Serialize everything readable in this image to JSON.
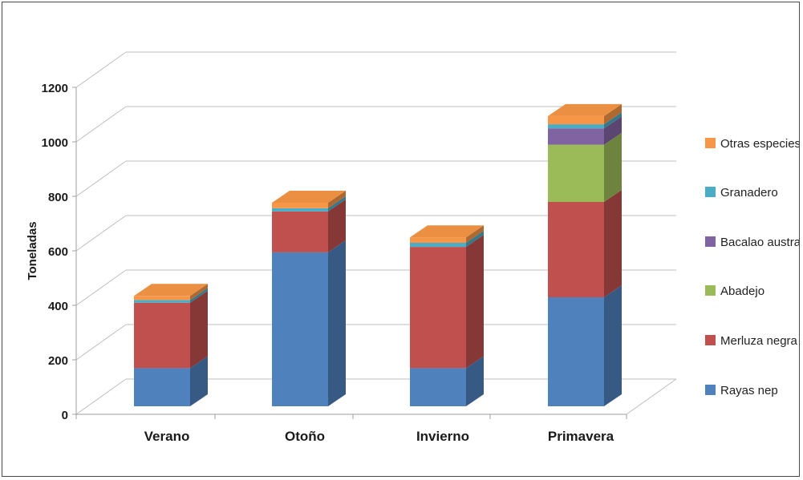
{
  "chart_data": {
    "type": "bar",
    "stacked": true,
    "style": "3d-column",
    "ylabel": "Toneladas",
    "xlabel": "",
    "title": "",
    "ylim": [
      0,
      1200
    ],
    "yticks": [
      "0",
      "200",
      "400",
      "600",
      "800",
      "1000",
      "1200"
    ],
    "grid": true,
    "legend_position": "right",
    "categories": [
      "Verano",
      "Otoño",
      "Invierno",
      "Primavera"
    ],
    "series": [
      {
        "name": "Rayas nep",
        "color": "#4F81BD",
        "values": [
          140,
          565,
          140,
          400
        ]
      },
      {
        "name": "Merluza negra",
        "color": "#C0504D",
        "values": [
          240,
          150,
          445,
          350
        ]
      },
      {
        "name": "Abadejo",
        "color": "#9BBB59",
        "values": [
          0,
          0,
          0,
          210
        ]
      },
      {
        "name": "Bacalao austral",
        "color": "#8064A2",
        "values": [
          0,
          0,
          0,
          60
        ]
      },
      {
        "name": "Granadero",
        "color": "#4BACC6",
        "values": [
          10,
          12,
          15,
          15
        ]
      },
      {
        "name": "Otras especies",
        "color": "#F79646",
        "values": [
          15,
          20,
          20,
          30
        ]
      }
    ]
  }
}
